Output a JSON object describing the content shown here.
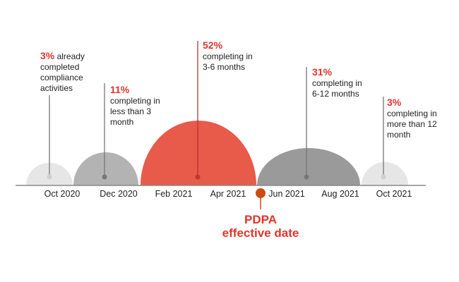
{
  "colors": {
    "light": "#e6e6e6",
    "mid": "#b3b3b3",
    "red": "#e85a4a",
    "dark": "#9a9a9a",
    "accent": "#e3342a",
    "pdpa_dot": "#d04a14",
    "line": "#777777"
  },
  "ticks": [
    "Oct 2020",
    "Dec 2020",
    "Feb 2021",
    "Apr 2021",
    "Jun 2021",
    "Aug 2021",
    "Oct 2021"
  ],
  "segments": [
    {
      "pct": "3%",
      "text_inline": " already",
      "text": [
        "completed",
        "compliance",
        "activities"
      ],
      "value": 3,
      "color_key": "light"
    },
    {
      "pct": "11%",
      "text_inline": "",
      "text": [
        "completing in",
        "less than 3",
        "month"
      ],
      "value": 11,
      "color_key": "mid"
    },
    {
      "pct": "52%",
      "text_inline": "",
      "text": [
        "completing in",
        "3-6 months"
      ],
      "value": 52,
      "color_key": "red"
    },
    {
      "pct": "31%",
      "text_inline": "",
      "text": [
        "completing in",
        "6-12 months"
      ],
      "value": 31,
      "color_key": "dark"
    },
    {
      "pct": "3%",
      "text_inline": "",
      "text": [
        "completing in",
        "more than 12",
        "month"
      ],
      "value": 3,
      "color_key": "light"
    }
  ],
  "pdpa": {
    "line1": "PDPA",
    "line2": "effective date"
  }
}
